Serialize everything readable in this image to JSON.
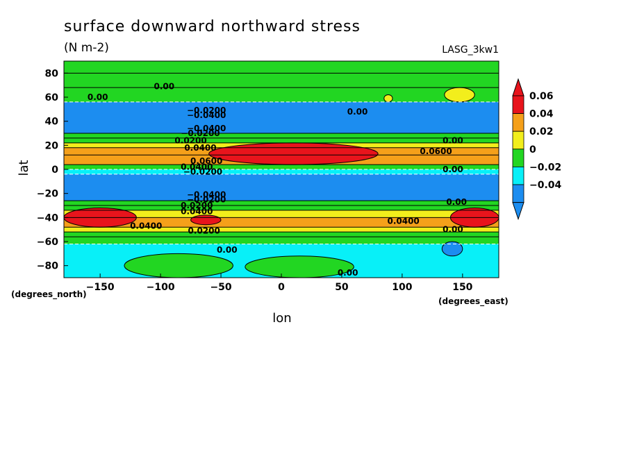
{
  "chart_data": {
    "type": "heatmap",
    "title": "surface downward northward stress",
    "units": "(N m-2)",
    "model_label": "LASG_3kw1",
    "xlabel": "lon",
    "ylabel": "lat",
    "x_units": "(degrees_east)",
    "y_units": "(degrees_north)",
    "xlim": [
      -180,
      180
    ],
    "ylim": [
      -90,
      90
    ],
    "x_ticks": [
      -150,
      -100,
      -50,
      0,
      50,
      100,
      150
    ],
    "y_ticks": [
      80,
      60,
      40,
      20,
      0,
      -20,
      -40,
      -60,
      -80
    ],
    "x_tick_labels": [
      "−150",
      "−100",
      "−50",
      "0",
      "50",
      "100",
      "150"
    ],
    "y_tick_labels": [
      "80",
      "60",
      "40",
      "20",
      "0",
      "−20",
      "−40",
      "−60",
      "−80"
    ],
    "colorbar": {
      "levels": [
        0.06,
        0.04,
        0.02,
        0,
        -0.02,
        -0.04
      ],
      "level_labels": [
        "0.06",
        "0.04",
        "0.02",
        "0",
        "−0.02",
        "−0.04"
      ],
      "colors": [
        "#e8141c",
        "#f5a01a",
        "#f2ee1c",
        "#22d622",
        "#08f0f8",
        "#1c8df0"
      ],
      "extend": "both"
    },
    "lat_bands": [
      {
        "lat": [
          80,
          90
        ],
        "class": 0
      },
      {
        "lat": [
          68,
          80
        ],
        "class": 1
      },
      {
        "lat": [
          56,
          68
        ],
        "class": 0
      },
      {
        "lat": [
          30,
          56
        ],
        "class": -2
      },
      {
        "lat": [
          26,
          30
        ],
        "class": 0
      },
      {
        "lat": [
          22,
          26
        ],
        "class": 1
      },
      {
        "lat": [
          18,
          22
        ],
        "class": 2
      },
      {
        "lat": [
          12,
          18
        ],
        "class": 3
      },
      {
        "lat": [
          4,
          12
        ],
        "class": 3
      },
      {
        "lat": [
          0,
          4
        ],
        "class": 0
      },
      {
        "lat": [
          -4,
          0
        ],
        "class": -1
      },
      {
        "lat": [
          -26,
          -4
        ],
        "class": -2
      },
      {
        "lat": [
          -30,
          -26
        ],
        "class": 0
      },
      {
        "lat": [
          -34,
          -30
        ],
        "class": 1
      },
      {
        "lat": [
          -40,
          -34
        ],
        "class": 2
      },
      {
        "lat": [
          -48,
          -40
        ],
        "class": 3
      },
      {
        "lat": [
          -52,
          -48
        ],
        "class": 2
      },
      {
        "lat": [
          -56,
          -52
        ],
        "class": 1
      },
      {
        "lat": [
          -62,
          -56
        ],
        "class": 0
      },
      {
        "lat": [
          -90,
          -62
        ],
        "class": -1
      }
    ],
    "features": [
      {
        "class": 4,
        "lon": [
          -60,
          80
        ],
        "lat": [
          4,
          22
        ]
      },
      {
        "class": 4,
        "lon": [
          -180,
          -120
        ],
        "lat": [
          -48,
          -32
        ]
      },
      {
        "class": 4,
        "lon": [
          -75,
          -50
        ],
        "lat": [
          -46,
          -38
        ]
      },
      {
        "class": 4,
        "lon": [
          140,
          180
        ],
        "lat": [
          -48,
          -32
        ]
      },
      {
        "class": 2,
        "lon": [
          135,
          160
        ],
        "lat": [
          56,
          68
        ]
      },
      {
        "class": 2,
        "lon": [
          85,
          92
        ],
        "lat": [
          56,
          62
        ]
      },
      {
        "class": 0,
        "lon": [
          -130,
          -40
        ],
        "lat": [
          -90,
          -70
        ]
      },
      {
        "class": 0,
        "lon": [
          -30,
          60
        ],
        "lat": [
          -90,
          -72
        ]
      },
      {
        "class": -2,
        "lon": [
          133,
          150
        ],
        "lat": [
          -72,
          -60
        ]
      }
    ],
    "contour_labels": [
      {
        "text": "0.00",
        "lon": -152,
        "lat": 60
      },
      {
        "text": "0.00",
        "lon": -97,
        "lat": 69
      },
      {
        "text": "−0.0200",
        "lon": -62,
        "lat": 49
      },
      {
        "text": "−0.0400",
        "lon": -62,
        "lat": 45
      },
      {
        "text": "−0.0400",
        "lon": -62,
        "lat": 34
      },
      {
        "text": "0.00",
        "lon": 63,
        "lat": 48
      },
      {
        "text": "−0.0200",
        "lon": -67,
        "lat": 30
      },
      {
        "text": "0.0200",
        "lon": -75,
        "lat": 24
      },
      {
        "text": "0.0400",
        "lon": -67,
        "lat": 18
      },
      {
        "text": "0.00",
        "lon": 142,
        "lat": 24
      },
      {
        "text": "0.0600",
        "lon": 128,
        "lat": 15
      },
      {
        "text": "0.0600",
        "lon": -62,
        "lat": 7
      },
      {
        "text": "0.0400",
        "lon": -70,
        "lat": 2
      },
      {
        "text": "−0.0200",
        "lon": -65,
        "lat": -2
      },
      {
        "text": "0.00",
        "lon": 142,
        "lat": 0
      },
      {
        "text": "−0.0400",
        "lon": -62,
        "lat": -21
      },
      {
        "text": "−0.0200",
        "lon": -62,
        "lat": -25
      },
      {
        "text": "0.00",
        "lon": 145,
        "lat": -27
      },
      {
        "text": "0.0200",
        "lon": -70,
        "lat": -30
      },
      {
        "text": "0.0400",
        "lon": -70,
        "lat": -35
      },
      {
        "text": "0.0400",
        "lon": -112,
        "lat": -47
      },
      {
        "text": "0.0200",
        "lon": -64,
        "lat": -51
      },
      {
        "text": "0.0400",
        "lon": 101,
        "lat": -43
      },
      {
        "text": "0.00",
        "lon": 142,
        "lat": -50
      },
      {
        "text": "0.00",
        "lon": -45,
        "lat": -67
      },
      {
        "text": "0.00",
        "lon": 55,
        "lat": -86
      }
    ]
  }
}
